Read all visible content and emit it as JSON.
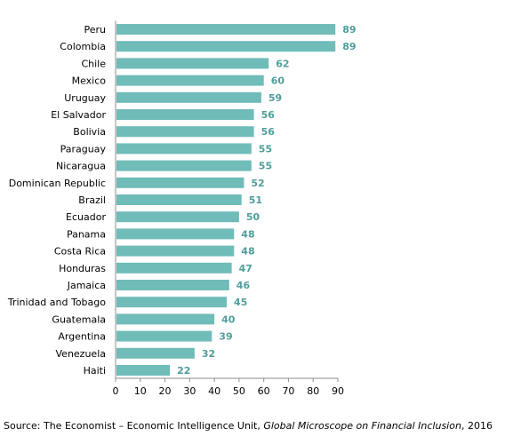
{
  "chart_data": {
    "type": "bar",
    "orientation": "horizontal",
    "categories": [
      "Peru",
      "Colombia",
      "Chile",
      "Mexico",
      "Uruguay",
      "El Salvador",
      "Bolivia",
      "Paraguay",
      "Nicaragua",
      "Dominican Republic",
      "Brazil",
      "Ecuador",
      "Panama",
      "Costa Rica",
      "Honduras",
      "Jamaica",
      "Trinidad and Tobago",
      "Guatemala",
      "Argentina",
      "Venezuela",
      "Haiti"
    ],
    "values": [
      89,
      89,
      62,
      60,
      59,
      56,
      56,
      55,
      55,
      52,
      51,
      50,
      48,
      48,
      47,
      46,
      45,
      40,
      39,
      32,
      22
    ],
    "xlim": [
      0,
      90
    ],
    "xticks": [
      0,
      10,
      20,
      30,
      40,
      50,
      60,
      70,
      80,
      90
    ],
    "title": "",
    "xlabel": "",
    "ylabel": "",
    "grid": false,
    "legend": "none",
    "bar_color": "#6fbcb9",
    "value_label_color": "#4e9e9b"
  },
  "source": {
    "prefix": "Source: The Economist – Economic Intelligence Unit, ",
    "title": "Global Microscope on Financial Inclusion",
    "suffix": ", 2016"
  }
}
